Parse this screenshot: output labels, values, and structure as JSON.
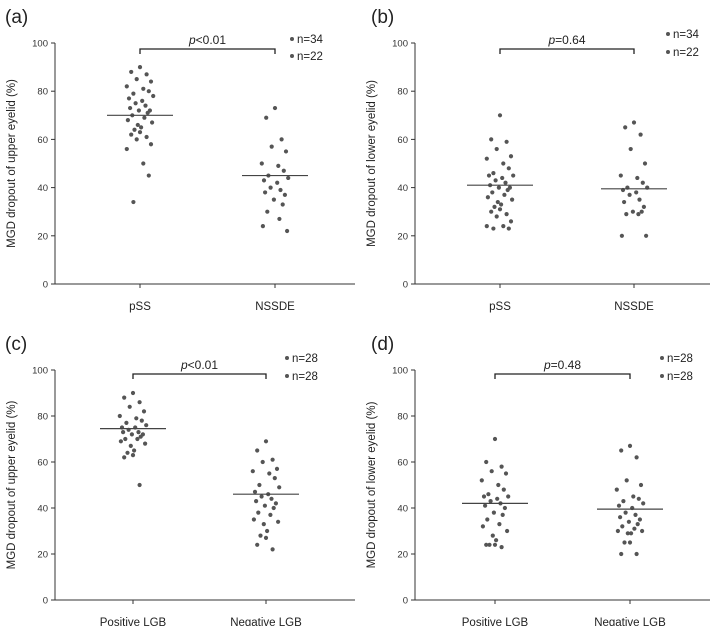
{
  "chart_data": [
    {
      "type": "scatter",
      "panel_label": "(a)",
      "ylabel": "MGD dropout of upper eyelid (%)",
      "ylim": [
        0,
        100
      ],
      "yticks": [
        0,
        20,
        40,
        60,
        80,
        100
      ],
      "categories": [
        "pSS",
        "NSSDE"
      ],
      "legend": [
        "n=34",
        "n=22"
      ],
      "significance": {
        "italic": "p",
        "rest": "<0.01"
      },
      "series": [
        {
          "values": [
            90,
            88,
            87,
            85,
            84,
            82,
            81,
            80,
            79,
            78,
            77,
            76,
            75,
            74,
            73,
            72,
            72,
            71,
            70,
            69,
            68,
            67,
            66,
            65,
            64,
            63,
            62,
            61,
            60,
            58,
            56,
            50,
            45,
            34
          ],
          "mean": 70
        },
        {
          "values": [
            73,
            69,
            60,
            57,
            55,
            50,
            49,
            47,
            45,
            44,
            43,
            42,
            40,
            39,
            38,
            37,
            35,
            33,
            30,
            27,
            24,
            22
          ],
          "mean": 45
        }
      ]
    },
    {
      "type": "scatter",
      "panel_label": "(b)",
      "ylabel": "MGD dropout of lower eyelid (%)",
      "ylim": [
        0,
        100
      ],
      "yticks": [
        0,
        20,
        40,
        60,
        80,
        100
      ],
      "categories": [
        "pSS",
        "NSSDE"
      ],
      "legend": [
        "n=34",
        "n=22"
      ],
      "significance": {
        "italic": "p",
        "rest": "=0.64"
      },
      "series": [
        {
          "values": [
            70,
            60,
            59,
            56,
            53,
            52,
            50,
            48,
            46,
            45,
            45,
            44,
            43,
            42,
            41,
            40,
            40,
            39,
            38,
            37,
            36,
            35,
            34,
            33,
            32,
            31,
            30,
            29,
            28,
            26,
            24,
            24,
            23,
            23
          ],
          "mean": 41
        },
        {
          "values": [
            67,
            65,
            62,
            56,
            50,
            45,
            44,
            42,
            40,
            40,
            39,
            38,
            37,
            35,
            34,
            32,
            30,
            30,
            29,
            29,
            20,
            20
          ],
          "mean": 39.5
        }
      ]
    },
    {
      "type": "scatter",
      "panel_label": "(c)",
      "ylabel": "MGD dropout of upper eyelid (%)",
      "ylim": [
        0,
        100
      ],
      "yticks": [
        0,
        20,
        40,
        60,
        80,
        100
      ],
      "categories": [
        "Positive LGB",
        "Negative LGB"
      ],
      "legend": [
        "n=28",
        "n=28"
      ],
      "significance": {
        "italic": "p",
        "rest": "<0.01"
      },
      "series": [
        {
          "values": [
            90,
            88,
            86,
            84,
            82,
            80,
            79,
            78,
            77,
            76,
            75,
            75,
            74,
            73,
            73,
            72,
            72,
            71,
            70,
            70,
            69,
            68,
            67,
            65,
            64,
            63,
            62,
            50
          ],
          "mean": 74.5
        },
        {
          "values": [
            69,
            65,
            61,
            60,
            57,
            56,
            55,
            53,
            50,
            49,
            47,
            46,
            45,
            44,
            43,
            42,
            41,
            40,
            38,
            37,
            35,
            34,
            33,
            30,
            28,
            27,
            24,
            22
          ],
          "mean": 46
        }
      ]
    },
    {
      "type": "scatter",
      "panel_label": "(d)",
      "ylabel": "MGD dropout of lower eyelid (%)",
      "ylim": [
        0,
        100
      ],
      "yticks": [
        0,
        20,
        40,
        60,
        80,
        100
      ],
      "categories": [
        "Positive LGB",
        "Negative LGB"
      ],
      "legend": [
        "n=28",
        "n=28"
      ],
      "significance": {
        "italic": "p",
        "rest": "=0.48"
      },
      "series": [
        {
          "values": [
            70,
            60,
            58,
            56,
            55,
            52,
            50,
            48,
            46,
            45,
            45,
            44,
            43,
            42,
            41,
            40,
            38,
            37,
            35,
            33,
            32,
            30,
            28,
            26,
            24,
            24,
            24,
            23
          ],
          "mean": 42
        },
        {
          "values": [
            67,
            65,
            62,
            52,
            50,
            48,
            45,
            44,
            43,
            42,
            41,
            40,
            38,
            37,
            36,
            35,
            34,
            33,
            32,
            31,
            30,
            30,
            29,
            29,
            25,
            25,
            20,
            20
          ],
          "mean": 39.5
        }
      ]
    }
  ]
}
